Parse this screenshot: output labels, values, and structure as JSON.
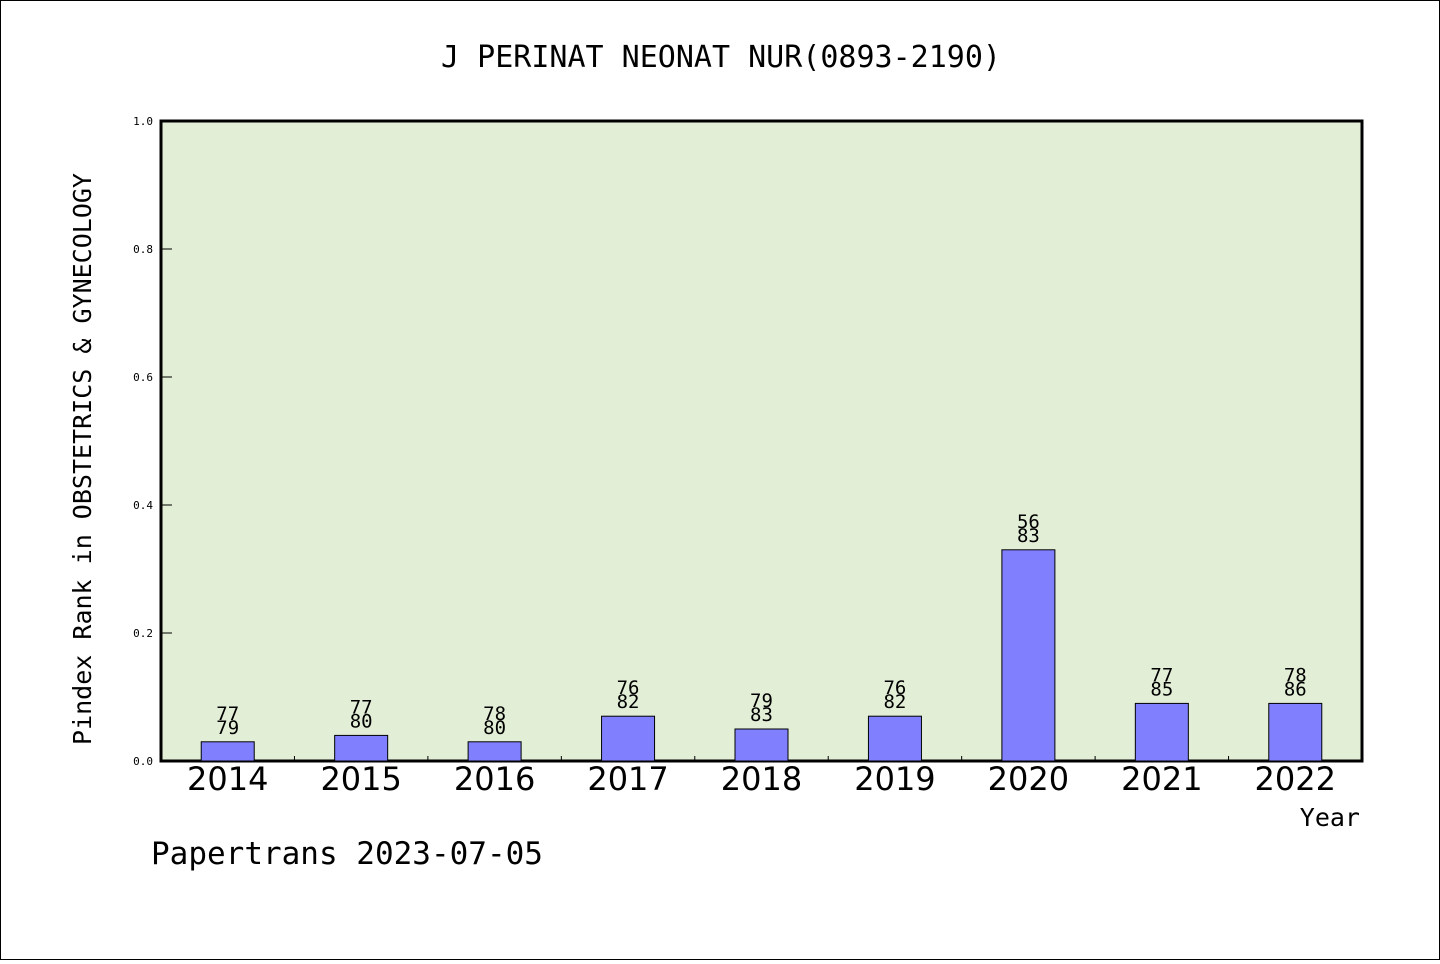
{
  "chart_data": {
    "type": "bar",
    "title": "J PERINAT NEONAT NUR(0893-2190)",
    "xlabel": "Year",
    "ylabel": "Pindex Rank in OBSTETRICS & GYNECOLOGY",
    "ylim": [
      0,
      1.0
    ],
    "yticks": [
      "0.0",
      "0.2",
      "0.4",
      "0.6",
      "0.8",
      "1.0"
    ],
    "categories": [
      "2014",
      "2015",
      "2016",
      "2017",
      "2018",
      "2019",
      "2020",
      "2021",
      "2022"
    ],
    "values": [
      0.03,
      0.04,
      0.03,
      0.07,
      0.05,
      0.07,
      0.33,
      0.09,
      0.09
    ],
    "label_top": [
      "77",
      "77",
      "78",
      "76",
      "79",
      "76",
      "56",
      "77",
      "78"
    ],
    "label_bottom": [
      "79",
      "80",
      "80",
      "82",
      "83",
      "82",
      "83",
      "85",
      "86"
    ],
    "grid": false,
    "legend": "none",
    "colors": {
      "plot_background": "#e2efd6",
      "bar_fill": "#8080ff",
      "bar_stroke": "#000000"
    }
  },
  "footer": {
    "text": "Papertrans 2023-07-05"
  }
}
